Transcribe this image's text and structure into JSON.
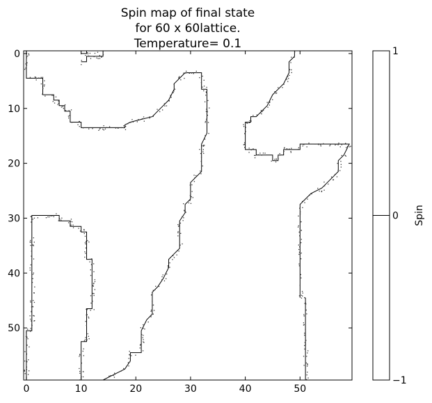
{
  "chart_data": {
    "type": "heatmap",
    "title_lines": [
      "Spin map of final state",
      "for  60 x 60lattice.",
      "Temperature= 0.1"
    ],
    "xlabel": "",
    "ylabel": "",
    "xlim": [
      -0.5,
      59.5
    ],
    "ylim": [
      59.5,
      -0.5
    ],
    "xticks": [
      0,
      10,
      20,
      30,
      40,
      50
    ],
    "yticks": [
      0,
      10,
      20,
      30,
      40,
      50
    ],
    "colorbar": {
      "label": "Spin",
      "ticks": [
        1,
        0,
        -1
      ],
      "tick_labels": [
        "1",
        "0",
        "−1"
      ],
      "colors": {
        "1": "#ffffff",
        "-1": "#ffffff"
      }
    },
    "grid": false,
    "boundaries": [
      {
        "name": "left-upper",
        "points": [
          [
            0,
            -0.5
          ],
          [
            0,
            4.5
          ],
          [
            3,
            4.5
          ],
          [
            3,
            7.5
          ],
          [
            5,
            7.5
          ],
          [
            5,
            8.5
          ],
          [
            6,
            8.5
          ],
          [
            6,
            9.5
          ],
          [
            7,
            9.5
          ],
          [
            7,
            10.5
          ],
          [
            8,
            10.5
          ],
          [
            8,
            12.5
          ],
          [
            10,
            12.5
          ],
          [
            10,
            13.5
          ],
          [
            18,
            13.5
          ],
          [
            18,
            13
          ],
          [
            19,
            12.5
          ],
          [
            21,
            12
          ],
          [
            23,
            11.5
          ],
          [
            24,
            10.5
          ],
          [
            25,
            9.5
          ],
          [
            26,
            8.5
          ],
          [
            27,
            6.5
          ],
          [
            27,
            5.5
          ],
          [
            28,
            4.5
          ],
          [
            29,
            3.5
          ],
          [
            32,
            3.5
          ],
          [
            32,
            6.5
          ],
          [
            33,
            6.5
          ],
          [
            33,
            14.5
          ],
          [
            32,
            16.5
          ],
          [
            32,
            21.5
          ],
          [
            31,
            22.5
          ],
          [
            30,
            23.5
          ],
          [
            30,
            26.5
          ],
          [
            29,
            27.5
          ],
          [
            29,
            29
          ],
          [
            28,
            30.5
          ],
          [
            28,
            35.5
          ],
          [
            27,
            36.5
          ],
          [
            26,
            37.5
          ],
          [
            26,
            39
          ],
          [
            25,
            41
          ],
          [
            24,
            42.5
          ],
          [
            23,
            43.5
          ],
          [
            23,
            47.5
          ],
          [
            22,
            48.5
          ],
          [
            21,
            50.5
          ],
          [
            21,
            54.5
          ],
          [
            19,
            54.5
          ],
          [
            19,
            56
          ],
          [
            18,
            57.5
          ],
          [
            16,
            58.5
          ],
          [
            14,
            59.5
          ]
        ]
      },
      {
        "name": "left-top-blip",
        "points": [
          [
            10,
            0
          ],
          [
            11,
            0
          ],
          [
            11,
            -0.5
          ],
          [
            14,
            -0.5
          ],
          [
            14,
            0.5
          ],
          [
            11,
            0.5
          ],
          [
            11,
            1.5
          ],
          [
            10,
            1.5
          ]
        ]
      },
      {
        "name": "left-lower",
        "points": [
          [
            0,
            59.5
          ],
          [
            0,
            50.5
          ],
          [
            1,
            50.5
          ],
          [
            1,
            29.5
          ],
          [
            6,
            29.5
          ],
          [
            6,
            30.5
          ],
          [
            8,
            30.5
          ],
          [
            8,
            31.5
          ],
          [
            10,
            31.5
          ],
          [
            10,
            32.5
          ],
          [
            11,
            32.5
          ],
          [
            11,
            37.5
          ],
          [
            12,
            37.5
          ],
          [
            12,
            46.5
          ],
          [
            11,
            46.5
          ],
          [
            11,
            52.5
          ],
          [
            10,
            52.5
          ],
          [
            10,
            59.5
          ]
        ]
      },
      {
        "name": "right-upper",
        "points": [
          [
            49,
            -0.5
          ],
          [
            49,
            0.5
          ],
          [
            48,
            1.5
          ],
          [
            48,
            3.5
          ],
          [
            47,
            5.5
          ],
          [
            46,
            6.5
          ],
          [
            45,
            7.5
          ],
          [
            44,
            9.5
          ],
          [
            43,
            10.5
          ],
          [
            42,
            11.5
          ],
          [
            41,
            11.5
          ],
          [
            41,
            12.5
          ],
          [
            40,
            12.5
          ],
          [
            40,
            17.5
          ],
          [
            42,
            17.5
          ],
          [
            42,
            18.5
          ],
          [
            45,
            18.5
          ],
          [
            45,
            19.5
          ],
          [
            46,
            19.5
          ],
          [
            46,
            18.5
          ],
          [
            47,
            18.5
          ],
          [
            47,
            17.5
          ],
          [
            50,
            17.5
          ],
          [
            50,
            16.5
          ],
          [
            59,
            16.5
          ],
          [
            58,
            18.5
          ],
          [
            57,
            19.5
          ],
          [
            57,
            21.5
          ],
          [
            56,
            22.5
          ],
          [
            55,
            23.5
          ],
          [
            54,
            24.5
          ],
          [
            52,
            25.5
          ],
          [
            51,
            26.5
          ],
          [
            50,
            27.5
          ],
          [
            50,
            44.5
          ]
        ]
      },
      {
        "name": "right-lower",
        "points": [
          [
            51,
            44.5
          ],
          [
            51,
            59.5
          ]
        ]
      }
    ]
  }
}
